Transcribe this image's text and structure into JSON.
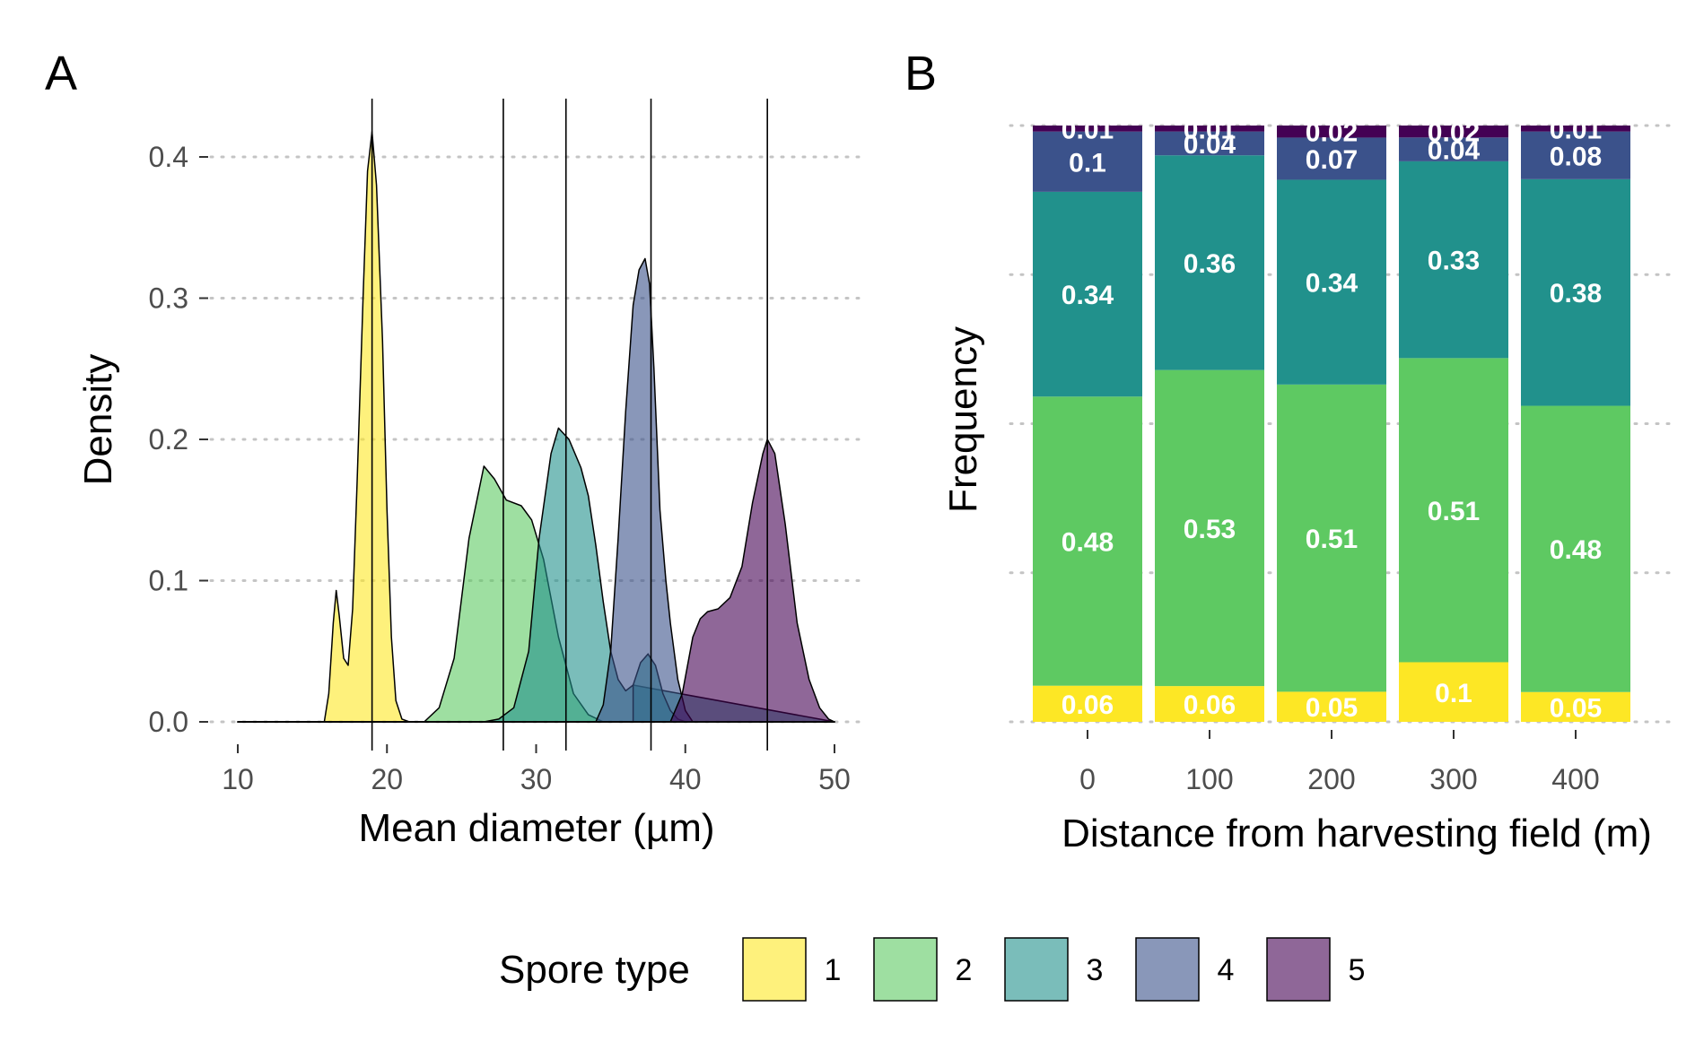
{
  "colors": {
    "1": "#fde725",
    "2": "#5ec962",
    "3": "#21918c",
    "4": "#3b528b",
    "5": "#440154"
  },
  "chart_data": [
    {
      "type": "area",
      "panel": "A",
      "xlabel": "Mean diameter (µm)",
      "ylabel": "Density",
      "xlim": [
        10,
        50
      ],
      "ylim": [
        0,
        0.42
      ],
      "xticks": [
        10,
        20,
        30,
        40,
        50
      ],
      "yticks": [
        0,
        0.1,
        0.2,
        0.3,
        0.4
      ],
      "ytick_labels": [
        "0.0",
        "0.1",
        "0.2",
        "0.3",
        "0.4"
      ],
      "grid": "horizontal dotted",
      "vertical_lines": [
        19,
        27.8,
        32.0,
        37.7,
        45.5
      ],
      "series": [
        {
          "name": "1",
          "x": [
            10,
            15.8,
            16.1,
            16.4,
            16.6,
            16.8,
            17.1,
            17.4,
            17.7,
            18.0,
            18.4,
            18.7,
            19.0,
            19.3,
            19.7,
            20.0,
            20.3,
            20.6,
            21.0,
            21.5,
            50
          ],
          "y": [
            0,
            0.0,
            0.02,
            0.07,
            0.093,
            0.075,
            0.045,
            0.04,
            0.08,
            0.17,
            0.3,
            0.39,
            0.418,
            0.38,
            0.27,
            0.15,
            0.06,
            0.015,
            0.002,
            0,
            0
          ]
        },
        {
          "name": "2",
          "x": [
            10,
            22.5,
            23.5,
            24.5,
            25.5,
            26.5,
            27.2,
            28.0,
            29.0,
            29.7,
            30.5,
            31.5,
            32.5,
            33.5,
            34.5,
            50
          ],
          "y": [
            0,
            0,
            0.01,
            0.045,
            0.13,
            0.181,
            0.172,
            0.157,
            0.153,
            0.143,
            0.115,
            0.06,
            0.02,
            0.005,
            0,
            0
          ]
        },
        {
          "name": "3",
          "x": [
            10,
            26.5,
            27.5,
            28.5,
            29.5,
            30.2,
            31.0,
            31.5,
            32.2,
            33.0,
            33.5,
            34.0,
            34.5,
            35.0,
            35.5,
            36.0,
            36.5,
            50
          ],
          "y": [
            0,
            0,
            0.002,
            0.01,
            0.05,
            0.13,
            0.19,
            0.208,
            0.2,
            0.18,
            0.16,
            0.125,
            0.085,
            0.05,
            0.03,
            0.022,
            0.026,
            0
          ],
          "x2": [
            36.5,
            37.0,
            37.5,
            38.0,
            38.5,
            39.0,
            39.5,
            40
          ],
          "y2": [
            0.026,
            0.042,
            0.048,
            0.04,
            0.02,
            0.008,
            0.002,
            0
          ]
        },
        {
          "name": "4",
          "x": [
            10,
            34.0,
            34.5,
            35.0,
            35.5,
            36.0,
            36.5,
            36.9,
            37.3,
            37.6,
            37.9,
            38.3,
            38.7,
            39.0,
            39.5,
            40.0,
            40.5,
            50
          ],
          "y": [
            0,
            0,
            0.012,
            0.05,
            0.13,
            0.22,
            0.295,
            0.32,
            0.328,
            0.31,
            0.25,
            0.15,
            0.1,
            0.07,
            0.03,
            0.008,
            0,
            0
          ]
        },
        {
          "name": "5",
          "x": [
            10,
            39.0,
            39.8,
            40.5,
            41.0,
            41.5,
            42.2,
            43.0,
            43.8,
            44.5,
            45.2,
            45.5,
            46.0,
            46.7,
            47.5,
            48.3,
            49.0,
            49.6,
            50
          ],
          "y": [
            0,
            0,
            0.02,
            0.06,
            0.073,
            0.078,
            0.08,
            0.088,
            0.11,
            0.155,
            0.19,
            0.2,
            0.19,
            0.14,
            0.07,
            0.03,
            0.01,
            0.002,
            0
          ]
        }
      ]
    },
    {
      "type": "bar",
      "panel": "B",
      "stacked": true,
      "xlabel": "Distance from harvesting field (m)",
      "ylabel": "Frequency",
      "categories": [
        "0",
        "100",
        "200",
        "300",
        "400"
      ],
      "ylim": [
        0,
        1
      ],
      "grid": "horizontal dotted",
      "series": [
        {
          "name": "1",
          "values": [
            0.06,
            0.06,
            0.05,
            0.1,
            0.05
          ],
          "labels": [
            "0.06",
            "0.06",
            "0.05",
            "0.1",
            "0.05"
          ]
        },
        {
          "name": "2",
          "values": [
            0.48,
            0.53,
            0.51,
            0.51,
            0.48
          ],
          "labels": [
            "0.48",
            "0.53",
            "0.51",
            "0.51",
            "0.48"
          ]
        },
        {
          "name": "3",
          "values": [
            0.34,
            0.36,
            0.34,
            0.33,
            0.38
          ],
          "labels": [
            "0.34",
            "0.36",
            "0.34",
            "0.33",
            "0.38"
          ]
        },
        {
          "name": "4",
          "values": [
            0.1,
            0.04,
            0.07,
            0.04,
            0.08
          ],
          "labels": [
            "0.1",
            "0.04",
            "0.07",
            "0.04",
            "0.08"
          ]
        },
        {
          "name": "5",
          "values": [
            0.01,
            0.01,
            0.02,
            0.02,
            0.01
          ],
          "labels": [
            "0.01",
            "0.01",
            "0.02",
            "0.02",
            "0.01"
          ]
        }
      ]
    }
  ],
  "legend": {
    "title": "Spore type",
    "position": "bottom",
    "items": [
      "1",
      "2",
      "3",
      "4",
      "5"
    ]
  }
}
